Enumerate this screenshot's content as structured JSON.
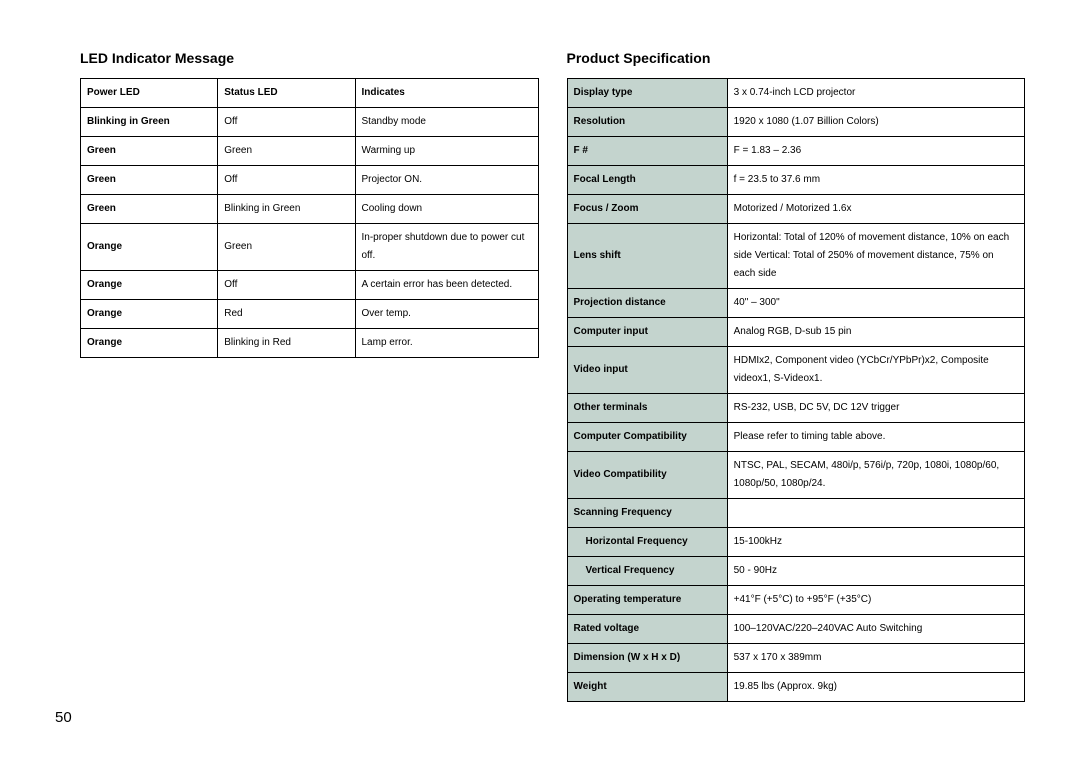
{
  "page_number": "50",
  "left": {
    "title": "LED Indicator Message",
    "headers": [
      "Power LED",
      "Status LED",
      "Indicates"
    ],
    "rows": [
      [
        "Blinking in Green",
        "Off",
        "Standby mode"
      ],
      [
        "Green",
        "Green",
        "Warming up"
      ],
      [
        "Green",
        "Off",
        "Projector ON."
      ],
      [
        "Green",
        "Blinking in Green",
        "Cooling down"
      ],
      [
        "Orange",
        "Green",
        "In-proper shutdown due to power cut off."
      ],
      [
        "Orange",
        "Off",
        "A certain error has been detected."
      ],
      [
        "Orange",
        "Red",
        "Over temp."
      ],
      [
        "Orange",
        "Blinking in Red",
        "Lamp error."
      ]
    ]
  },
  "right": {
    "title": "Product Specification",
    "rows": [
      {
        "label": "Display type",
        "value": "3 x 0.74-inch LCD projector"
      },
      {
        "label": "Resolution",
        "value": "1920 x 1080 (1.07 Billion Colors)"
      },
      {
        "label": "F #",
        "value": "F = 1.83 – 2.36"
      },
      {
        "label": "Focal Length",
        "value": "f = 23.5 to 37.6 mm"
      },
      {
        "label": "Focus / Zoom",
        "value": "Motorized / Motorized 1.6x"
      },
      {
        "label": "Lens shift",
        "value": "Horizontal: Total of 120% of movement distance, 10% on each side Vertical: Total of 250% of movement distance, 75% on each side"
      },
      {
        "label": "Projection distance",
        "value": "40\" – 300\""
      },
      {
        "label": "Computer input",
        "value": "Analog RGB, D-sub 15 pin"
      },
      {
        "label": "Video input",
        "value": "HDMIx2, Component video (YCbCr/YPbPr)x2, Composite videox1, S-Videox1."
      },
      {
        "label": "Other terminals",
        "value": "RS-232, USB, DC 5V, DC 12V trigger"
      },
      {
        "label": "Computer Compatibility",
        "value": "Please refer to timing table above."
      },
      {
        "label": "Video Compatibility",
        "value": "NTSC, PAL, SECAM, 480i/p, 576i/p, 720p, 1080i, 1080p/60, 1080p/50, 1080p/24."
      },
      {
        "label": "Scanning Frequency",
        "value": ""
      },
      {
        "label": "Horizontal Frequency",
        "value": "15-100kHz",
        "indent": true
      },
      {
        "label": "Vertical Frequency",
        "value": "50 - 90Hz",
        "indent": true
      },
      {
        "label": "Operating temperature",
        "value": "+41°F (+5°C) to +95°F (+35°C)"
      },
      {
        "label": "Rated voltage",
        "value": "100–120VAC/220–240VAC Auto Switching"
      },
      {
        "label": "Dimension (W x H x D)",
        "value": "537 x 170 x 389mm"
      },
      {
        "label": "Weight",
        "value": "19.85 lbs (Approx. 9kg)"
      }
    ]
  },
  "colors": {
    "spec_label_bg": "#c4d4ce",
    "border": "#000000",
    "text": "#000000",
    "background": "#ffffff"
  },
  "typography": {
    "title_fontsize": 14,
    "cell_fontsize": 10,
    "page_num_fontsize": 15
  }
}
